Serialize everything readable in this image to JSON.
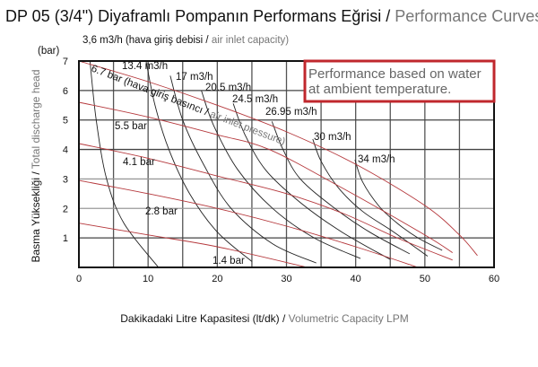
{
  "title": {
    "main": "DP 05 (3/4\") Diyaframlı Pompanın Performans Eğrisi /",
    "english": " Performance Curves"
  },
  "subtitle": {
    "main": "3,6 m3/h (hava giriş debisi /",
    "english": " air inlet capacity)"
  },
  "note": {
    "line1": "Performance based on water",
    "line2": "at ambient temperature."
  },
  "colors": {
    "air_capacity_curves": "#222222",
    "pressure_lines": "#b5383c",
    "note_border": "#c0272d",
    "grid": "#888888"
  },
  "chart_data": {
    "type": "line",
    "xlabel": {
      "main": "Dakikadaki Litre Kapasitesi (lt/dk) /",
      "english": " Volumetric Capacity LPM"
    },
    "ylabel": {
      "main": "Basma Yüksekliği /",
      "english": " Total discharge head"
    },
    "yunit": "(bar)",
    "xlim": [
      0,
      60
    ],
    "ylim": [
      0,
      7
    ],
    "xticks": [
      "0",
      "10",
      "20",
      "30",
      "40",
      "50",
      "60"
    ],
    "yticks": [
      "1",
      "2",
      "3",
      "4",
      "5",
      "6",
      "7"
    ],
    "grid": true,
    "pressure_lines": [
      {
        "name": "6.7 bar",
        "points": [
          [
            0,
            7.0
          ],
          [
            10,
            6.3
          ],
          [
            20,
            5.5
          ],
          [
            30,
            4.6
          ],
          [
            40,
            3.5
          ],
          [
            50,
            2.1
          ],
          [
            55,
            1.1
          ],
          [
            57.6,
            0.4
          ]
        ]
      },
      {
        "name": "5.5 bar",
        "points": [
          [
            0,
            5.6
          ],
          [
            10,
            5.1
          ],
          [
            20,
            4.5
          ],
          [
            27.5,
            4.0
          ],
          [
            38,
            2.7
          ],
          [
            50,
            1.1
          ],
          [
            54,
            0.5
          ]
        ]
      },
      {
        "name": "4.1 bar",
        "points": [
          [
            0,
            4.2
          ],
          [
            10,
            3.7
          ],
          [
            20,
            3.1
          ],
          [
            30,
            2.5
          ],
          [
            38.5,
            1.8
          ],
          [
            46,
            1.0
          ],
          [
            54,
            0.25
          ]
        ]
      },
      {
        "name": "2.8 bar",
        "points": [
          [
            0,
            2.95
          ],
          [
            10,
            2.5
          ],
          [
            20,
            2.0
          ],
          [
            30,
            1.4
          ],
          [
            40,
            0.7
          ],
          [
            49,
            0.0
          ]
        ]
      },
      {
        "name": "1.4 bar",
        "points": [
          [
            0,
            1.5
          ],
          [
            10,
            1.1
          ],
          [
            20,
            0.7
          ],
          [
            33,
            0.0
          ]
        ]
      }
    ],
    "pressure_line_caption": {
      "main": "(hava giriş basıncı /",
      "english": " air inlet pressure)"
    },
    "air_capacity_curves": [
      {
        "name": "3,6 m3/h",
        "points": [
          [
            1.6,
            7
          ],
          [
            2.5,
            5
          ],
          [
            4,
            3
          ],
          [
            6.5,
            1.5
          ],
          [
            11.5,
            0
          ]
        ]
      },
      {
        "name": "13.4 m3/h",
        "points": [
          [
            9.7,
            7
          ],
          [
            11,
            5.5
          ],
          [
            13,
            4
          ],
          [
            16,
            2.5
          ],
          [
            20,
            1.2
          ],
          [
            25,
            0.2
          ]
        ]
      },
      {
        "name": "17 m3/h",
        "points": [
          [
            13.2,
            6.5
          ],
          [
            15,
            5
          ],
          [
            18,
            3.5
          ],
          [
            22,
            2
          ],
          [
            28,
            0.8
          ],
          [
            34.3,
            0.15
          ]
        ]
      },
      {
        "name": "20.5 m3/h",
        "points": [
          [
            17.7,
            6.0
          ],
          [
            19.5,
            4.8
          ],
          [
            23,
            3.3
          ],
          [
            28,
            2
          ],
          [
            34,
            1
          ],
          [
            40.7,
            0.3
          ]
        ]
      },
      {
        "name": "24.5 m3/h",
        "points": [
          [
            22.3,
            5.56
          ],
          [
            24,
            4.5
          ],
          [
            27,
            3.3
          ],
          [
            32,
            2.2
          ],
          [
            38,
            1.2
          ],
          [
            45,
            0.27
          ]
        ]
      },
      {
        "name": "26.95 m3/h",
        "points": [
          [
            27.9,
            4.95
          ],
          [
            29.5,
            4
          ],
          [
            32,
            3
          ],
          [
            37,
            2
          ],
          [
            42,
            1.2
          ],
          [
            47.8,
            0.46
          ]
        ]
      },
      {
        "name": "30 m3/h",
        "points": [
          [
            33.8,
            4.35
          ],
          [
            35,
            3.6
          ],
          [
            37.5,
            2.7
          ],
          [
            41,
            1.9
          ],
          [
            45.5,
            1.2
          ],
          [
            50.4,
            0.38
          ]
        ]
      },
      {
        "name": "34 m3/h",
        "points": [
          [
            39.9,
            3.65
          ],
          [
            41,
            2.9
          ],
          [
            43.4,
            2.07
          ],
          [
            46,
            1.5
          ],
          [
            49,
            1.0
          ],
          [
            52.5,
            0.58
          ]
        ]
      }
    ]
  }
}
